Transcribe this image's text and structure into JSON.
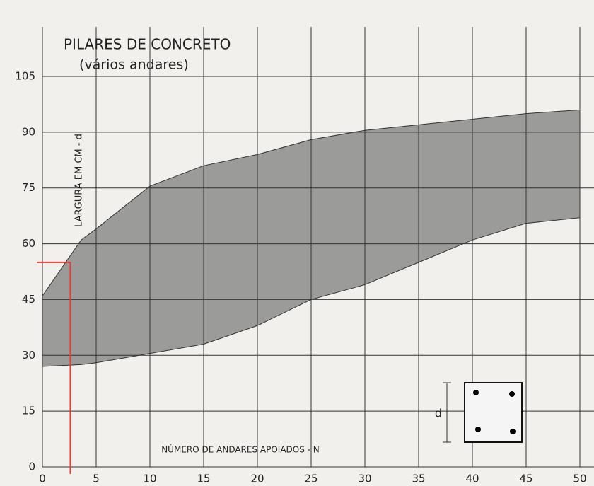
{
  "chart_data": {
    "type": "band",
    "title": "PILARES DE CONCRETO",
    "subtitle": "(vários andares)",
    "y_label": "LARGURA EM CM - d",
    "x_label": "NÚMERO DE ANDARES APOIADOS - N",
    "inset_label": "d",
    "x": [
      0,
      3.6,
      5,
      10,
      15,
      20,
      25,
      30,
      35,
      40,
      45,
      50
    ],
    "upper": [
      46,
      61,
      64,
      75.5,
      81,
      84,
      88,
      90.5,
      92,
      93.5,
      95,
      96
    ],
    "lower": [
      27,
      27.5,
      28,
      30.5,
      33,
      38,
      45,
      49,
      55,
      61,
      65.5,
      67
    ],
    "color": "#8c8c8c",
    "marker": {
      "x": 2.6,
      "y": 55,
      "color": "#e53935"
    },
    "xlim": [
      0,
      50
    ],
    "xticks": [
      0,
      5,
      10,
      15,
      20,
      25,
      30,
      35,
      40,
      45,
      50
    ],
    "ylim": [
      0,
      105
    ],
    "yticks": [
      0,
      15,
      30,
      45,
      60,
      75,
      90,
      105
    ],
    "grid": true
  }
}
